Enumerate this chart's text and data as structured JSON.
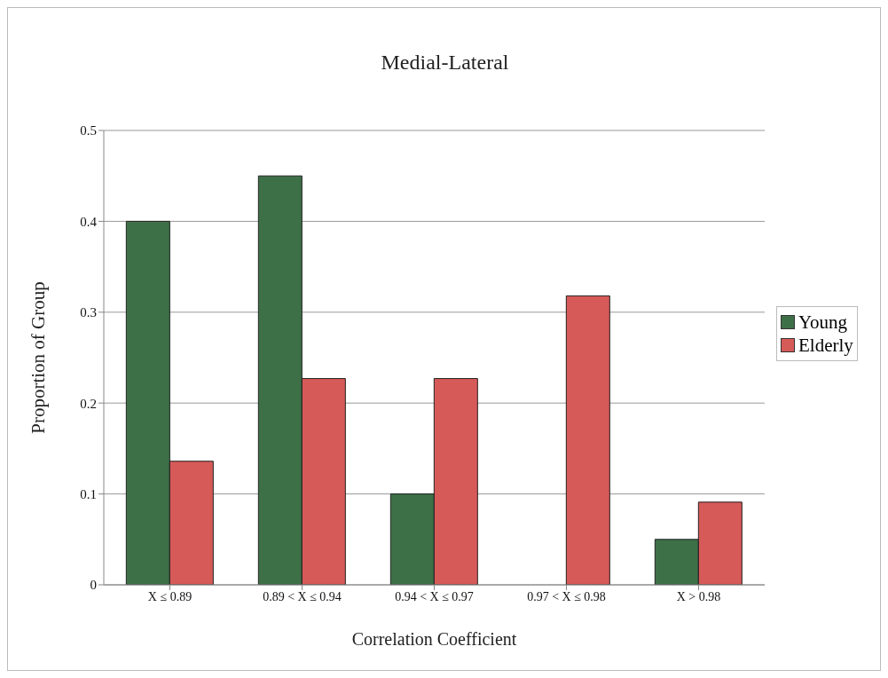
{
  "chart_data": {
    "type": "bar",
    "title": "Medial-Lateral",
    "xlabel": "Correlation Coefficient",
    "ylabel": "Proportion of Group",
    "categories": [
      "X ≤ 0.89",
      "0.89 < X ≤ 0.94",
      "0.94 < X ≤ 0.97",
      "0.97 < X  ≤ 0.98",
      "X > 0.98"
    ],
    "series": [
      {
        "name": "Young",
        "color": "#3e7048",
        "values": [
          0.4,
          0.45,
          0.1,
          0,
          0.05
        ]
      },
      {
        "name": "Elderly",
        "color": "#d65a58",
        "values": [
          0.136,
          0.227,
          0.227,
          0.318,
          0.091
        ]
      }
    ],
    "ylim": [
      0,
      0.5
    ],
    "yticks": [
      0,
      0.1,
      0.2,
      0.3,
      0.4,
      0.5
    ],
    "grid": "y",
    "legend": "right"
  }
}
